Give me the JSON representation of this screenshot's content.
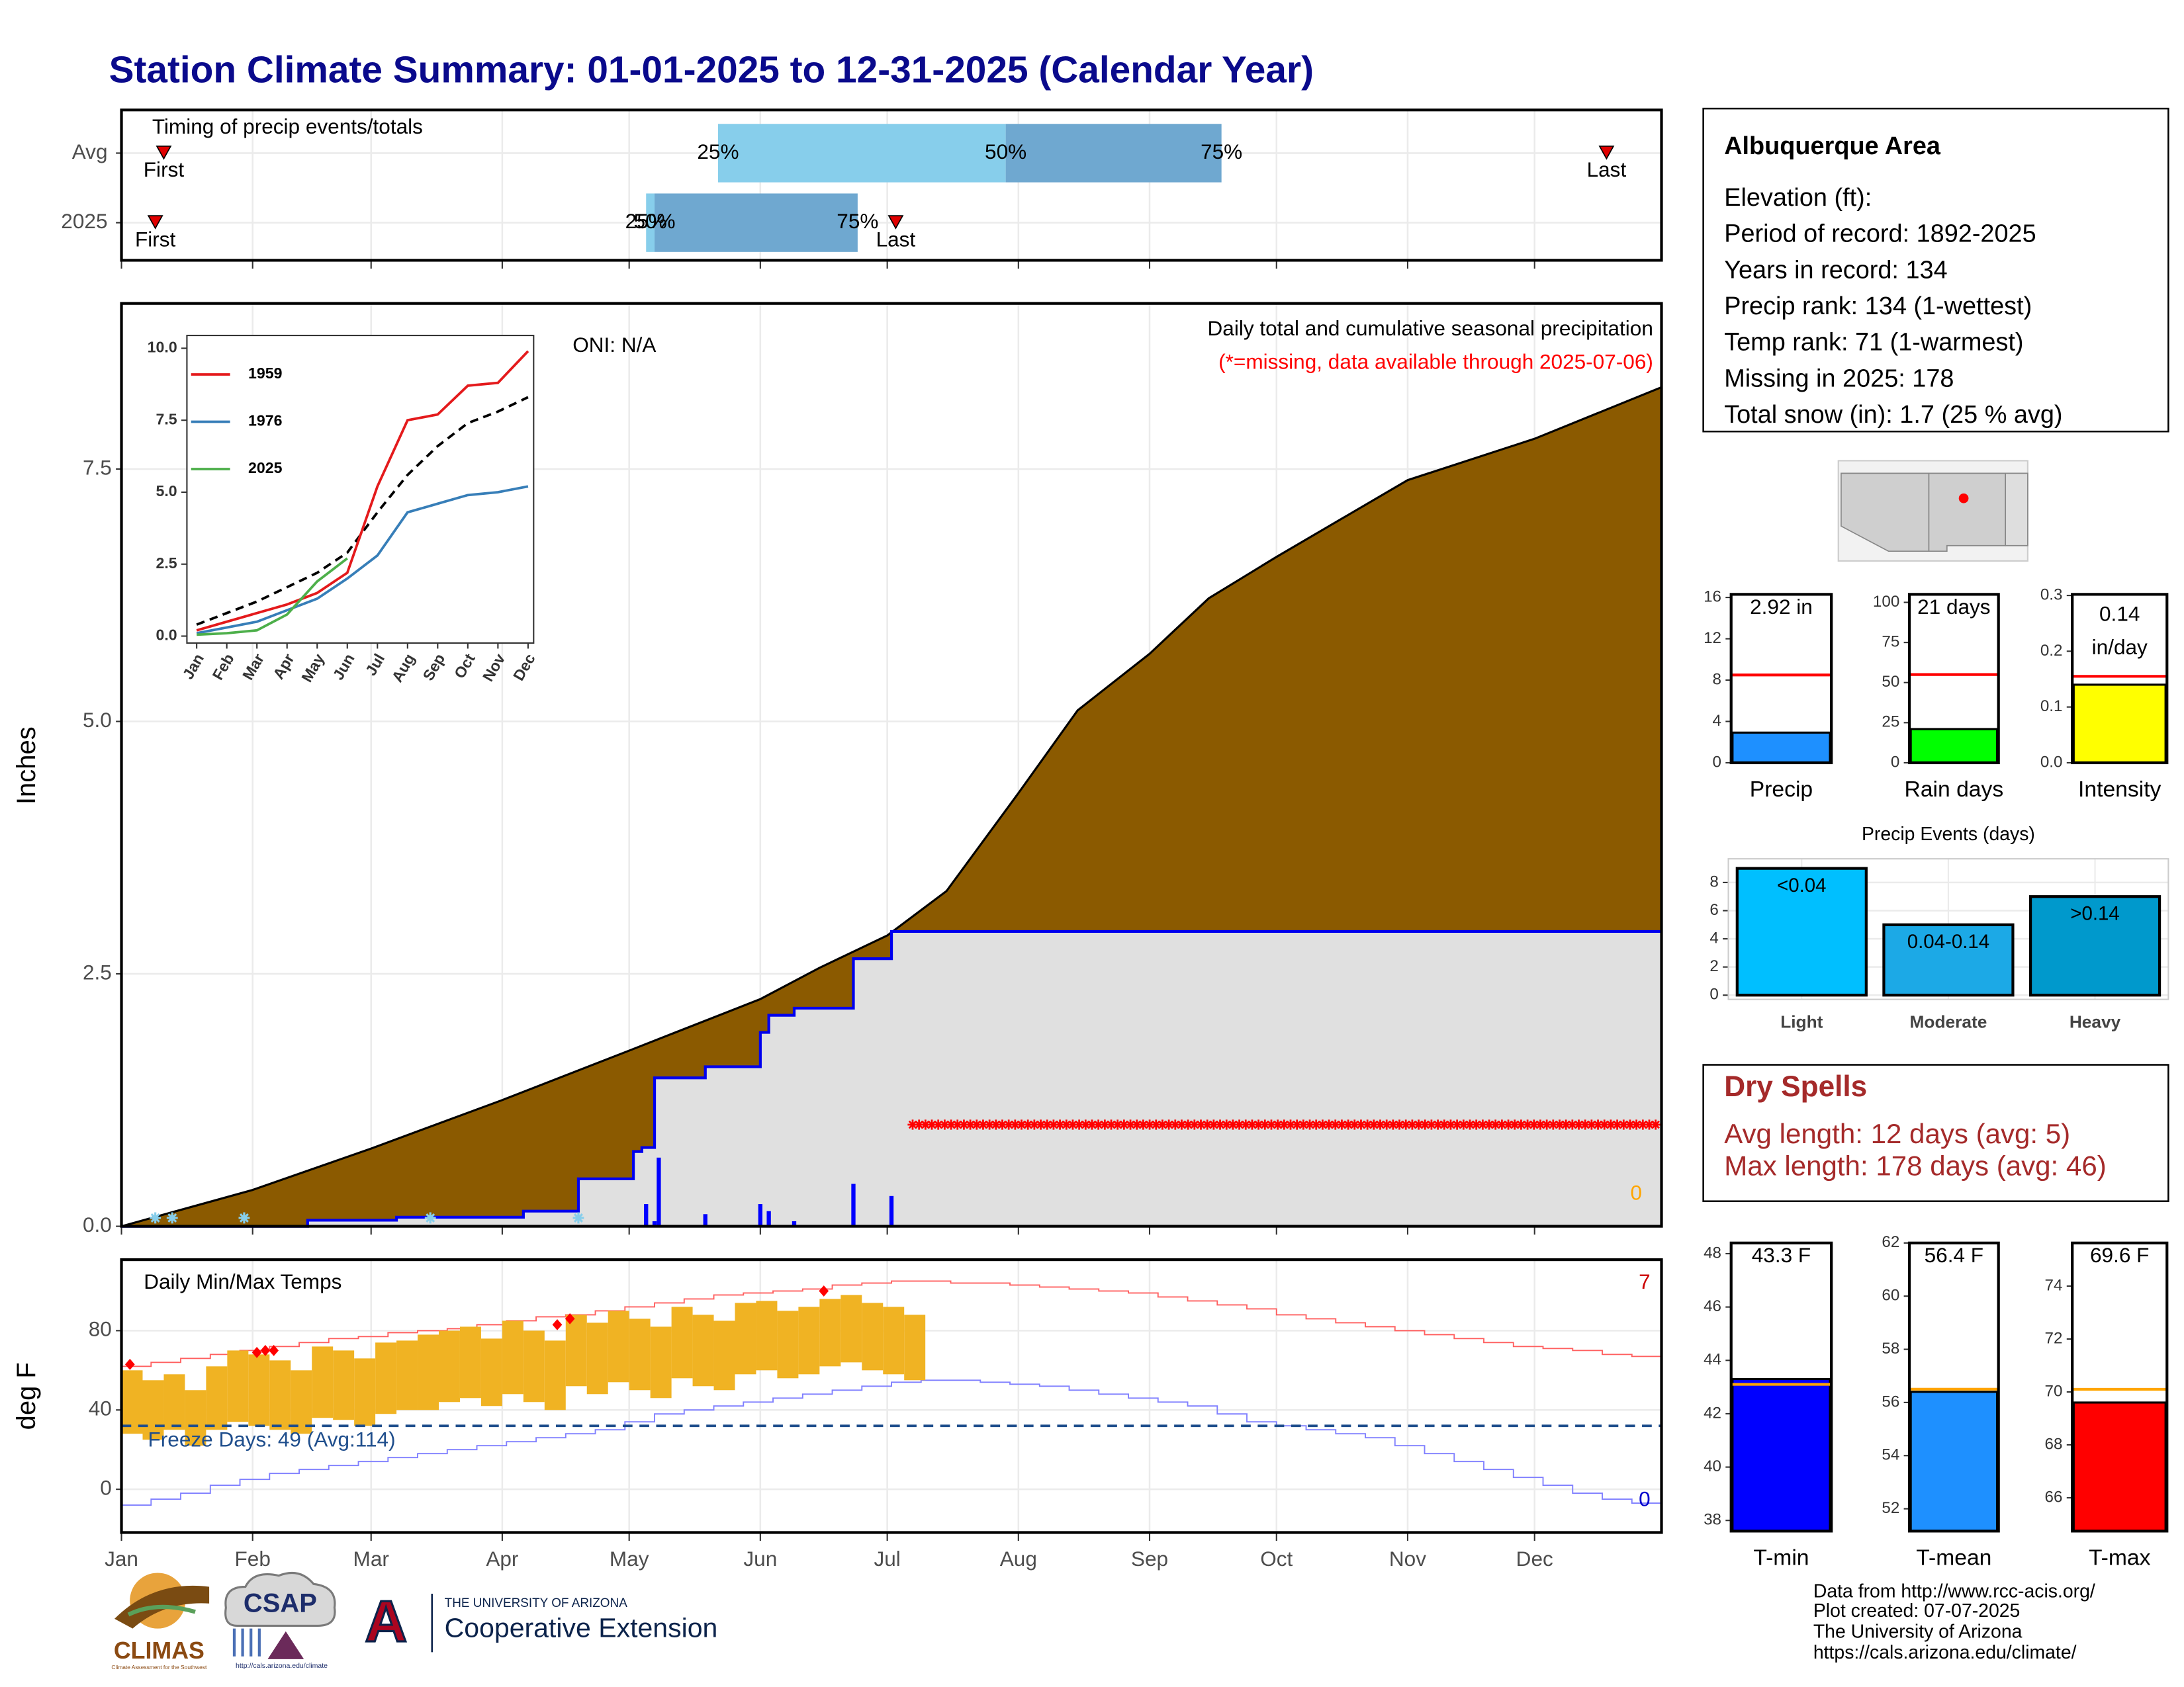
{
  "title": "Station Climate Summary: 01-01-2025 to 12-31-2025 (Calendar Year)",
  "chart_data": [
    {
      "type": "timeline",
      "label": "Timing of precip events/totals",
      "categories": [
        "Avg",
        "2025"
      ],
      "markers": {
        "first": [
          11,
          9
        ],
        "last": [
          352,
          184
        ]
      },
      "marker_labels": {
        "first": "First",
        "last": "Last"
      },
      "quartiles": {
        "q25": [
          142,
          125
        ],
        "q50": [
          210,
          127
        ],
        "q75": [
          261,
          175
        ]
      },
      "quartile_labels": {
        "q25": "25%",
        "q50": "50%",
        "q75": "75%"
      },
      "colors": {
        "lower": "#87ceeb",
        "upper": "#6fa8d0",
        "marker": "#e00000"
      },
      "xlim": [
        1,
        365
      ]
    },
    {
      "type": "area",
      "ylabel": "Inches",
      "title": "Daily total and cumulative seasonal precipitation",
      "subtitle": "(*=missing, data available through 2025-07-06)",
      "annotation": "ONI: N/A",
      "count": 0,
      "count_color": "#ffa500",
      "xlim": [
        1,
        365
      ],
      "ylim": [
        0,
        9.14
      ],
      "yticks": [
        {
          "value": 0,
          "label": "0.0"
        },
        2.5,
        {
          "value": 5,
          "label": "5.0"
        },
        7.5
      ],
      "grid": true,
      "average": {
        "x": [
          1,
          32,
          60,
          91,
          121,
          152,
          166,
          182,
          196,
          213,
          227,
          244,
          258,
          274,
          305,
          335,
          365
        ],
        "values": [
          0,
          0.36,
          0.77,
          1.25,
          1.74,
          2.25,
          2.56,
          2.88,
          3.32,
          4.29,
          5.11,
          5.67,
          6.22,
          6.63,
          7.39,
          7.8,
          8.31
        ],
        "color": "#8b5a00"
      },
      "observed": {
        "x": [
          1,
          45,
          66,
          96,
          109,
          122,
          124,
          127,
          139,
          152,
          154,
          160,
          174,
          183,
          365
        ],
        "values": [
          0,
          0.06,
          0.09,
          0.15,
          0.47,
          0.74,
          0.78,
          1.47,
          1.58,
          1.92,
          2.09,
          2.16,
          2.65,
          2.92,
          2.92
        ],
        "color": "#0000ee",
        "fill_color": "#e0e0e0"
      },
      "daily": {
        "x": [
          125,
          127,
          128,
          139,
          152,
          154,
          160,
          174,
          183
        ],
        "values": [
          0.22,
          0.05,
          0.68,
          0.12,
          0.22,
          0.15,
          0.05,
          0.42,
          0.3
        ],
        "color": "#0000ff"
      },
      "missing": {
        "from": 188,
        "to": 365,
        "color": "#ff0000"
      },
      "snow_days": [
        9,
        13,
        30,
        74,
        109
      ],
      "snow_color": "#87ceeb"
    },
    {
      "type": "line",
      "categories": [
        "Jan",
        "Feb",
        "Mar",
        "Apr",
        "May",
        "Jun",
        "Jul",
        "Aug",
        "Sep",
        "Oct",
        "Nov",
        "Dec"
      ],
      "ylim": [
        0,
        10.3
      ],
      "yticks": [
        {
          "value": 0,
          "label": "0.0"
        },
        2.5,
        {
          "value": 5,
          "label": "5.0"
        },
        7.5,
        {
          "value": 10,
          "label": "10.0"
        }
      ],
      "series": [
        {
          "name": "1959",
          "color": "#e41a1c",
          "values": [
            0.2,
            0.5,
            0.8,
            1.1,
            1.5,
            2.2,
            5.2,
            7.5,
            7.7,
            8.7,
            8.8,
            9.9
          ]
        },
        {
          "name": "1976",
          "color": "#377eb8",
          "values": [
            0.1,
            0.3,
            0.5,
            0.9,
            1.3,
            2.0,
            2.8,
            4.3,
            4.6,
            4.9,
            5.0,
            5.2
          ]
        },
        {
          "name": "2025",
          "color": "#4daf4a",
          "values": [
            0.05,
            0.1,
            0.2,
            0.75,
            1.9,
            2.7,
            null,
            null,
            null,
            null,
            null,
            null
          ]
        }
      ],
      "average": {
        "values": [
          0.4,
          0.8,
          1.2,
          1.7,
          2.2,
          2.9,
          4.3,
          5.6,
          6.6,
          7.4,
          7.8,
          8.3
        ],
        "color": "#000000"
      }
    },
    {
      "type": "range",
      "label": "Daily Min/Max Temps",
      "ylabel": "deg F",
      "xlim": [
        1,
        365
      ],
      "ylim": [
        -21.8,
        115.8
      ],
      "yticks": [
        0,
        40,
        80
      ],
      "grid": true,
      "xticks": [
        {
          "value": 1,
          "label": "Jan"
        },
        {
          "value": 32,
          "label": "Feb"
        },
        {
          "value": 60,
          "label": "Mar"
        },
        {
          "value": 91,
          "label": "Apr"
        },
        {
          "value": 121,
          "label": "May"
        },
        {
          "value": 152,
          "label": "Jun"
        },
        {
          "value": 182,
          "label": "Jul"
        },
        {
          "value": 213,
          "label": "Aug"
        },
        {
          "value": 244,
          "label": "Sep"
        },
        {
          "value": 274,
          "label": "Oct"
        },
        {
          "value": 305,
          "label": "Nov"
        },
        {
          "value": 335,
          "label": "Dec"
        }
      ],
      "record_high": {
        "x": [
          1,
          8,
          15,
          22,
          29,
          36,
          43,
          50,
          57,
          64,
          71,
          78,
          85,
          92,
          99,
          106,
          113,
          120,
          127,
          134,
          141,
          148,
          155,
          162,
          169,
          176,
          183,
          190,
          197,
          204,
          211,
          218,
          225,
          232,
          239,
          246,
          253,
          260,
          267,
          274,
          281,
          288,
          295,
          302,
          309,
          316,
          323,
          330,
          337,
          344,
          351,
          358,
          365
        ],
        "values": [
          62,
          64,
          66,
          68,
          70,
          72,
          74,
          76,
          77,
          79,
          80,
          81,
          83,
          85,
          87,
          88,
          90,
          92,
          94,
          96,
          98,
          99,
          100,
          101,
          103,
          104,
          105,
          105,
          104,
          104,
          103,
          102,
          101,
          100,
          99,
          97,
          95,
          93,
          91,
          88,
          86,
          84,
          82,
          80,
          78,
          76,
          74,
          72,
          71,
          70,
          68,
          67,
          66
        ],
        "color": "#ff6060"
      },
      "record_low": {
        "x": [
          1,
          8,
          15,
          22,
          29,
          36,
          43,
          50,
          57,
          64,
          71,
          78,
          85,
          92,
          99,
          106,
          113,
          120,
          127,
          134,
          141,
          148,
          155,
          162,
          169,
          176,
          183,
          190,
          197,
          204,
          211,
          218,
          225,
          232,
          239,
          246,
          253,
          260,
          267,
          274,
          281,
          288,
          295,
          302,
          309,
          316,
          323,
          330,
          337,
          344,
          351,
          358,
          365
        ],
        "values": [
          -8,
          -5,
          -2,
          2,
          5,
          8,
          10,
          12,
          14,
          16,
          18,
          20,
          22,
          24,
          26,
          28,
          30,
          34,
          38,
          40,
          42,
          44,
          46,
          48,
          50,
          52,
          54,
          55,
          55,
          54,
          53,
          52,
          50,
          48,
          46,
          44,
          42,
          38,
          34,
          32,
          30,
          28,
          26,
          22,
          18,
          14,
          10,
          6,
          2,
          -2,
          -5,
          -7,
          -8
        ],
        "color": "#8080ff"
      },
      "observed": {
        "x": [
          1,
          6,
          11,
          16,
          21,
          26,
          31,
          36,
          41,
          46,
          51,
          56,
          61,
          66,
          71,
          76,
          81,
          86,
          91,
          96,
          101,
          106,
          111,
          116,
          121,
          126,
          131,
          136,
          141,
          146,
          151,
          156,
          161,
          166,
          171,
          176,
          181,
          186
        ],
        "max": [
          60,
          55,
          58,
          50,
          62,
          70,
          68,
          65,
          60,
          72,
          70,
          66,
          74,
          75,
          78,
          80,
          82,
          76,
          85,
          80,
          75,
          88,
          84,
          90,
          86,
          82,
          92,
          88,
          85,
          94,
          95,
          90,
          92,
          96,
          98,
          94,
          92,
          88
        ],
        "min": [
          28,
          25,
          30,
          22,
          30,
          34,
          32,
          30,
          28,
          36,
          35,
          32,
          38,
          40,
          40,
          44,
          46,
          42,
          48,
          44,
          40,
          52,
          48,
          54,
          50,
          46,
          56,
          52,
          50,
          58,
          60,
          56,
          58,
          62,
          64,
          60,
          58,
          55
        ],
        "color": "#f0b323"
      },
      "record_days": {
        "x": [
          3,
          33,
          35,
          37,
          104,
          107,
          167
        ],
        "values": [
          63,
          69,
          70,
          70,
          83,
          86,
          100
        ],
        "color": "#ff0000"
      },
      "freeze_line": 32,
      "freeze_color": "#1f4e8c",
      "freeze_label": "Freeze Days: 49 (Avg:114)",
      "high_count": 7,
      "low_count": 0
    },
    {
      "type": "gauge",
      "name": "Precip",
      "value": 2.92,
      "value_label": "2.92 in",
      "average": 8.5,
      "ylim": [
        0,
        16.3
      ],
      "yticks": [
        0,
        4,
        8,
        12,
        16
      ],
      "color": "#1e90ff",
      "average_color": "#ff0000"
    },
    {
      "type": "gauge",
      "name": "Rain days",
      "value": 21,
      "value_label": "21 days",
      "average": 55,
      "ylim": [
        0,
        105
      ],
      "yticks": [
        0,
        25,
        50,
        75,
        100
      ],
      "color": "#00ff00",
      "average_color": "#ff0000"
    },
    {
      "type": "gauge",
      "name": "Intensity",
      "value": 0.14,
      "value_label": "0.14",
      "unit": "in/day",
      "average": 0.155,
      "ylim": [
        0,
        0.302
      ],
      "yticks": [
        {
          "value": 0,
          "label": "0.0"
        },
        0.1,
        0.2,
        0.3
      ],
      "color": "#ffff00",
      "average_color": "#ff0000"
    },
    {
      "type": "bar",
      "title": "Precip Events (days)",
      "categories": [
        "Light",
        "Moderate",
        "Heavy"
      ],
      "values": [
        9,
        5,
        7
      ],
      "bin_labels": [
        "<0.04",
        "0.04-0.14",
        ">0.14"
      ],
      "colors": [
        "#00bfff",
        "#1ca9e6",
        "#0099cc"
      ],
      "ylim": [
        -0.3,
        9.68
      ],
      "yticks": [
        0,
        2,
        4,
        6,
        8
      ],
      "grid": true
    },
    {
      "type": "gauge",
      "name": "T-min",
      "value": 43.3,
      "value_label": "43.3 F",
      "average": 43.1,
      "ylim": [
        37.6,
        48.4
      ],
      "yticks": [
        38,
        40,
        42,
        44,
        46,
        48
      ],
      "color": "#0000ff",
      "average_color": "#ffa500"
    },
    {
      "type": "gauge",
      "name": "T-mean",
      "value": 56.4,
      "value_label": "56.4 F",
      "average": 56.5,
      "ylim": [
        51.16,
        62
      ],
      "yticks": [
        52,
        54,
        56,
        58,
        60,
        62
      ],
      "color": "#1e90ff",
      "average_color": "#ffa500"
    },
    {
      "type": "gauge",
      "name": "T-max",
      "value": 69.6,
      "value_label": "69.6 F",
      "average": 70.1,
      "ylim": [
        64.74,
        75.63
      ],
      "yticks": [
        66,
        68,
        70,
        72,
        74
      ],
      "color": "#ff0000",
      "average_color": "#ffa500"
    }
  ],
  "station": {
    "name": "Albuquerque Area",
    "lines": [
      "Elevation (ft):",
      "Period of record: 1892-2025",
      "Years in record: 134",
      "Precip rank: 134 (1-wettest)",
      "Temp rank: 71 (1-warmest)",
      "Missing in 2025: 178",
      "Total snow (in): 1.7 (25 % avg)"
    ]
  },
  "dry_spells": {
    "title": "Dry Spells",
    "lines": [
      "Avg length: 12 days (avg: 5)",
      "Max length: 178 days (avg: 46)"
    ]
  },
  "footer": [
    "Data from http://www.rcc-acis.org/",
    "Plot created: 07-07-2025",
    "The University of Arizona",
    "https://cals.arizona.edu/climate/"
  ],
  "logos": {
    "climas": "CLIMAS",
    "climas_sub": "Climate Assessment for the Southwest",
    "csap": "CSAP",
    "csap_url": "http://cals.arizona.edu/climate",
    "ua_letter": "A",
    "ua_top": "THE UNIVERSITY OF ARIZONA",
    "ua_main": "Cooperative Extension"
  }
}
